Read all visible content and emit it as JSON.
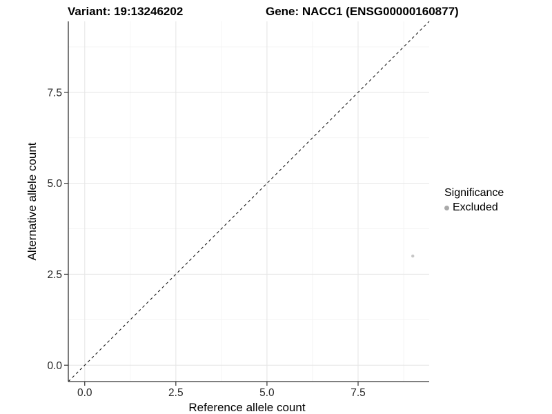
{
  "chart_data": {
    "type": "scatter",
    "titles": {
      "variant": "Variant: 19:13246202",
      "gene": "Gene: NACC1 (ENSG00000160877)"
    },
    "xlabel": "Reference allele count",
    "ylabel": "Alternative allele count",
    "xlim": [
      -0.45,
      9.45
    ],
    "ylim": [
      -0.45,
      9.45
    ],
    "x_ticks": [
      0,
      2.5,
      5,
      7.5
    ],
    "x_tick_labels": [
      "0.0",
      "2.5",
      "5.0",
      "7.5"
    ],
    "y_ticks": [
      0,
      2.5,
      5,
      7.5
    ],
    "y_tick_labels": [
      "0.0",
      "2.5",
      "5.0",
      "7.5"
    ],
    "x_minor_ticks": [
      1.25,
      3.75,
      6.25,
      8.75
    ],
    "y_minor_ticks": [
      1.25,
      3.75,
      6.25,
      8.75
    ],
    "grid": "major+minor",
    "legend": {
      "position": "right",
      "title": "Significance",
      "items": [
        {
          "label": "Excluded",
          "color": "#a9a9a9"
        }
      ]
    },
    "series": [
      {
        "name": "Excluded",
        "color": "#c6c6c6",
        "points": [
          {
            "x": 9,
            "y": 3
          }
        ]
      }
    ],
    "reference_line": {
      "kind": "identity y=x",
      "style": "dashed",
      "color": "#1a1a1a"
    }
  },
  "style": {
    "background": "#ffffff",
    "grid_major": "#e6e6e6",
    "grid_minor": "#f3f3f3",
    "axis_line": "#333333",
    "tick_mark": "#333333",
    "tick_text": "#262626",
    "point_color": "#c6c6c6",
    "legend_dot_color": "#a9a9a9"
  }
}
